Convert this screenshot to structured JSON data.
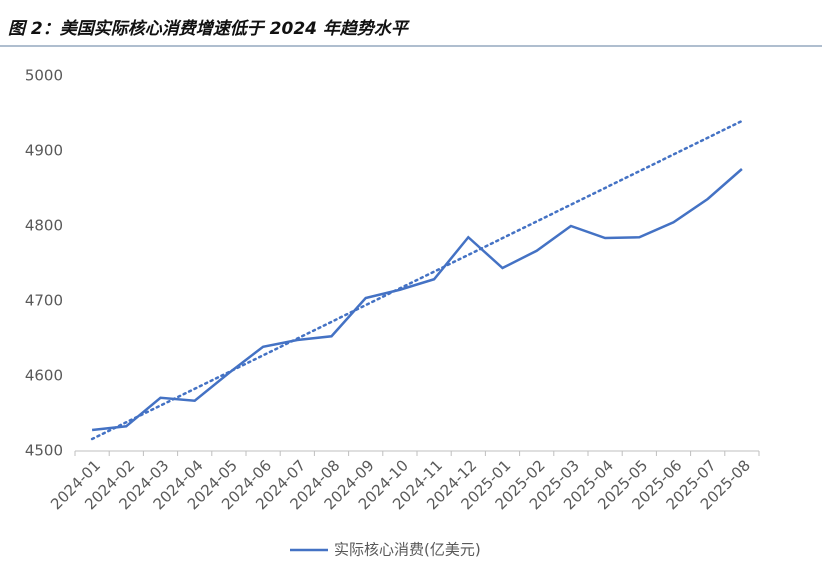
{
  "chart_data": {
    "type": "line",
    "title": "图 2：美国实际核心消费增速低于 2024 年趋势水平",
    "categories": [
      "2024-01",
      "2024-02",
      "2024-03",
      "2024-04",
      "2024-05",
      "2024-06",
      "2024-07",
      "2024-08",
      "2024-09",
      "2024-10",
      "2024-11",
      "2024-12",
      "2025-01",
      "2025-02",
      "2025-03",
      "2025-04",
      "2025-05",
      "2025-06",
      "2025-07",
      "2025-08"
    ],
    "series": [
      {
        "name": "实际核心消费(亿美元)",
        "color": "#4472c4",
        "values": [
          4528,
          4533,
          4571,
          4567,
          4604,
          4639,
          4648,
          4653,
          4704,
          4715,
          4729,
          4785,
          4744,
          4767,
          4800,
          4784,
          4785,
          4805,
          4836,
          4876
        ]
      }
    ],
    "trendline": {
      "color": "#4472c4",
      "values": [
        4516,
        4940
      ]
    },
    "ylim": [
      4500,
      5000
    ],
    "yticks": [
      4500,
      4600,
      4700,
      4800,
      4900,
      5000
    ],
    "grid": false,
    "legend": "bottom"
  }
}
